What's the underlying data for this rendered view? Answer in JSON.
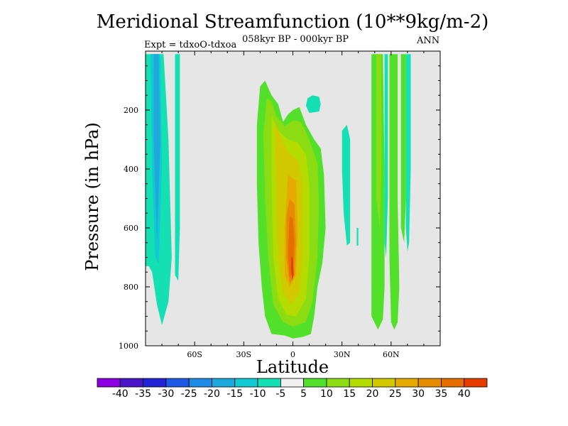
{
  "chart_data": {
    "type": "contour",
    "title": "Meridional Streamfunction (10**9kg/m-2)",
    "subtitle": "058kyr BP - 000kyr BP",
    "left_subtitle": "Expt = tdxoO-tdxoa",
    "right_subtitle": "ANN",
    "xlabel": "Latitude",
    "ylabel": "Pressure (in hPa)",
    "xlim": [
      -90,
      90
    ],
    "ylim": [
      1000,
      0
    ],
    "x_ticks": [
      {
        "value": -60,
        "label": "60S"
      },
      {
        "value": -30,
        "label": "30S"
      },
      {
        "value": 0,
        "label": "0"
      },
      {
        "value": 30,
        "label": "30N"
      },
      {
        "value": 60,
        "label": "60N"
      }
    ],
    "y_ticks": [
      {
        "value": 200,
        "label": "200"
      },
      {
        "value": 400,
        "label": "400"
      },
      {
        "value": 600,
        "label": "600"
      },
      {
        "value": 800,
        "label": "800"
      },
      {
        "value": 1000,
        "label": "1000"
      }
    ],
    "background_color": "#e6e6e6",
    "colorbar": {
      "labels": [
        "-40",
        "-35",
        "-30",
        "-25",
        "-20",
        "-15",
        "-10",
        "-5",
        "5",
        "10",
        "15",
        "20",
        "25",
        "30",
        "35",
        "40"
      ],
      "colors": [
        "#8a00e0",
        "#4a14c8",
        "#2323d6",
        "#1e5ae6",
        "#1e8ce6",
        "#1ea8dc",
        "#12c8d2",
        "#14e0b4",
        "#f0f0f0",
        "#52e02a",
        "#8cdc14",
        "#b4dc00",
        "#d2c800",
        "#e6aa00",
        "#e68c00",
        "#e66e00",
        "#e63c00"
      ]
    },
    "regions": [
      {
        "name": "sh-polar-cell",
        "level": "-10",
        "color": "#14e0b4",
        "points": [
          [
            -90,
            10
          ],
          [
            -79,
            10
          ],
          [
            -76,
            300
          ],
          [
            -74,
            700
          ],
          [
            -76,
            850
          ],
          [
            -80,
            930
          ],
          [
            -83,
            860
          ],
          [
            -86,
            750
          ],
          [
            -88,
            730
          ],
          [
            -90,
            730
          ]
        ]
      },
      {
        "name": "sh-polar-core",
        "level": "-15",
        "color": "#12c8d2",
        "points": [
          [
            -87,
            10
          ],
          [
            -81,
            10
          ],
          [
            -80,
            400
          ],
          [
            -82,
            720
          ],
          [
            -84,
            700
          ],
          [
            -86,
            400
          ]
        ]
      },
      {
        "name": "sh-polar-core-inner",
        "level": "-20",
        "color": "#1ea8dc",
        "points": [
          [
            -85,
            10
          ],
          [
            -82,
            10
          ],
          [
            -81,
            300
          ],
          [
            -83,
            650
          ],
          [
            -85,
            300
          ]
        ]
      },
      {
        "name": "sh-streak",
        "level": "-10",
        "color": "#14e0b4",
        "points": [
          [
            -72,
            10
          ],
          [
            -69,
            10
          ],
          [
            -69,
            600
          ],
          [
            -70,
            780
          ],
          [
            -72,
            760
          ],
          [
            -72,
            400
          ]
        ]
      },
      {
        "name": "tropical-cell",
        "level": "5",
        "color": "#52e02a",
        "points": [
          [
            -20,
            120
          ],
          [
            -17,
            100
          ],
          [
            -13,
            150
          ],
          [
            -9,
            180
          ],
          [
            -6,
            240
          ],
          [
            -3,
            215
          ],
          [
            0,
            200
          ],
          [
            4,
            190
          ],
          [
            8,
            250
          ],
          [
            13,
            300
          ],
          [
            17,
            330
          ],
          [
            19,
            420
          ],
          [
            20,
            600
          ],
          [
            18,
            720
          ],
          [
            15,
            800
          ],
          [
            13,
            900
          ],
          [
            11,
            960
          ],
          [
            6,
            970
          ],
          [
            0,
            975
          ],
          [
            -5,
            965
          ],
          [
            -13,
            960
          ],
          [
            -17,
            900
          ],
          [
            -19,
            800
          ],
          [
            -21,
            650
          ],
          [
            -22,
            450
          ],
          [
            -22,
            250
          ]
        ]
      },
      {
        "name": "tropical-10",
        "level": "10",
        "color": "#8cdc14",
        "points": [
          [
            -16,
            160
          ],
          [
            -13,
            170
          ],
          [
            -10,
            220
          ],
          [
            -5,
            255
          ],
          [
            0,
            235
          ],
          [
            5,
            240
          ],
          [
            10,
            300
          ],
          [
            15,
            380
          ],
          [
            16,
            520
          ],
          [
            15,
            700
          ],
          [
            12,
            850
          ],
          [
            8,
            920
          ],
          [
            0,
            935
          ],
          [
            -6,
            920
          ],
          [
            -12,
            860
          ],
          [
            -15,
            700
          ],
          [
            -17,
            500
          ],
          [
            -18,
            280
          ]
        ]
      },
      {
        "name": "tropical-15",
        "level": "15",
        "color": "#b4dc00",
        "points": [
          [
            -13,
            220
          ],
          [
            -9,
            270
          ],
          [
            -3,
            300
          ],
          [
            3,
            310
          ],
          [
            8,
            350
          ],
          [
            10,
            450
          ],
          [
            10,
            700
          ],
          [
            8,
            840
          ],
          [
            2,
            900
          ],
          [
            -4,
            895
          ],
          [
            -9,
            840
          ],
          [
            -12,
            700
          ],
          [
            -13,
            450
          ]
        ]
      },
      {
        "name": "tropical-20",
        "level": "20",
        "color": "#d2c800",
        "points": [
          [
            -11,
            240
          ],
          [
            -7,
            300
          ],
          [
            -2,
            350
          ],
          [
            3,
            370
          ],
          [
            6,
            450
          ],
          [
            6,
            700
          ],
          [
            4,
            820
          ],
          [
            -1,
            860
          ],
          [
            -6,
            820
          ],
          [
            -9,
            700
          ],
          [
            -10,
            480
          ]
        ]
      },
      {
        "name": "tropical-25",
        "level": "25",
        "color": "#e6aa00",
        "points": [
          [
            -3,
            420
          ],
          [
            2,
            440
          ],
          [
            3,
            600
          ],
          [
            2,
            760
          ],
          [
            -2,
            800
          ],
          [
            -5,
            760
          ],
          [
            -5,
            600
          ]
        ]
      },
      {
        "name": "tropical-30",
        "level": "30",
        "color": "#e68c00",
        "points": [
          [
            -2,
            500
          ],
          [
            1,
            520
          ],
          [
            2,
            650
          ],
          [
            1,
            760
          ],
          [
            -2,
            790
          ],
          [
            -4,
            700
          ],
          [
            -4,
            560
          ]
        ]
      },
      {
        "name": "tropical-35",
        "level": "35",
        "color": "#e66e00",
        "points": [
          [
            -2,
            560
          ],
          [
            0,
            570
          ],
          [
            1,
            650
          ],
          [
            0,
            750
          ],
          [
            -2,
            770
          ],
          [
            -3,
            680
          ]
        ]
      },
      {
        "name": "tropical-40",
        "level": "40",
        "color": "#e63c00",
        "points": [
          [
            -1,
            700
          ],
          [
            0,
            700
          ],
          [
            0.5,
            760
          ],
          [
            -0.5,
            780
          ],
          [
            -1,
            740
          ]
        ]
      },
      {
        "name": "upper-blob",
        "level": "-10",
        "color": "#14e0b4",
        "points": [
          [
            8,
            185
          ],
          [
            9,
            160
          ],
          [
            12,
            150
          ],
          [
            16,
            155
          ],
          [
            17,
            180
          ],
          [
            16,
            205
          ],
          [
            10,
            210
          ]
        ]
      },
      {
        "name": "nh-streak-30n",
        "level": "-10",
        "color": "#14e0b4",
        "points": [
          [
            30,
            270
          ],
          [
            33,
            250
          ],
          [
            35,
            300
          ],
          [
            35,
            650
          ],
          [
            33,
            660
          ],
          [
            31,
            550
          ],
          [
            30,
            400
          ]
        ]
      },
      {
        "name": "nh-dot",
        "level": "-10",
        "color": "#14e0b4",
        "points": [
          [
            39,
            600
          ],
          [
            40,
            600
          ],
          [
            40,
            660
          ],
          [
            39,
            660
          ]
        ]
      },
      {
        "name": "nh-green-band-1",
        "level": "5",
        "color": "#52e02a",
        "points": [
          [
            48,
            10
          ],
          [
            55,
            10
          ],
          [
            56,
            400
          ],
          [
            56,
            800
          ],
          [
            55,
            910
          ],
          [
            52,
            945
          ],
          [
            48,
            900
          ],
          [
            48,
            500
          ]
        ]
      },
      {
        "name": "nh-yellow-streak",
        "level": "10",
        "color": "#8cdc14",
        "points": [
          [
            51,
            10
          ],
          [
            54,
            10
          ],
          [
            54,
            400
          ],
          [
            53,
            600
          ],
          [
            51,
            500
          ]
        ]
      },
      {
        "name": "nh-cyan-streak",
        "level": "-10",
        "color": "#14e0b4",
        "points": [
          [
            56,
            10
          ],
          [
            58,
            10
          ],
          [
            58,
            500
          ],
          [
            57,
            700
          ],
          [
            56,
            650
          ]
        ]
      },
      {
        "name": "nh-green-band-2",
        "level": "5",
        "color": "#52e02a",
        "points": [
          [
            59,
            10
          ],
          [
            64,
            10
          ],
          [
            64,
            500
          ],
          [
            65,
            800
          ],
          [
            64,
            920
          ],
          [
            62,
            945
          ],
          [
            60,
            920
          ],
          [
            59,
            700
          ]
        ]
      },
      {
        "name": "nh-green-streak-3",
        "level": "5",
        "color": "#52e02a",
        "points": [
          [
            66,
            10
          ],
          [
            69,
            10
          ],
          [
            69,
            500
          ],
          [
            68,
            650
          ],
          [
            66,
            600
          ]
        ]
      },
      {
        "name": "nh-cyan-polar",
        "level": "-10",
        "color": "#14e0b4",
        "points": [
          [
            69,
            10
          ],
          [
            72,
            10
          ],
          [
            72,
            400
          ],
          [
            71,
            650
          ],
          [
            70,
            680
          ],
          [
            69,
            600
          ]
        ]
      }
    ]
  }
}
